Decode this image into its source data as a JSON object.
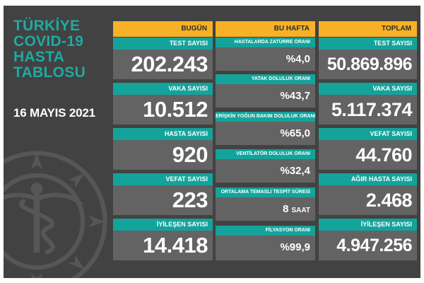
{
  "title_lines": [
    "TÜRKİYE",
    "COVID-19",
    "HASTA",
    "TABLOSU"
  ],
  "date": "16 MAYIS 2021",
  "emblem": "health-ministry-emblem",
  "colors": {
    "panel": "#424242",
    "header": "#f6b126",
    "label": "#14a39b",
    "value": "#636363",
    "title": "#1fa9a2"
  },
  "columns": {
    "today": {
      "header": "BUGÜN",
      "cards": [
        {
          "label": "TEST SAYISI",
          "value": "202.243"
        },
        {
          "label": "VAKA SAYISI",
          "value": "10.512"
        },
        {
          "label": "HASTA SAYISI",
          "value": "920"
        },
        {
          "label": "VEFAT SAYISI",
          "value": "223"
        },
        {
          "label": "İYİLEŞEN SAYISI",
          "value": "14.418"
        }
      ]
    },
    "week": {
      "header": "BU HAFTA",
      "cards": [
        {
          "label": "HASTALARDA ZATÜRRE ORANI",
          "value": "%4,0",
          "unit": ""
        },
        {
          "label": "YATAK DOLULUK ORANI",
          "value": "%43,7",
          "unit": ""
        },
        {
          "label": "ERİŞKİN YOĞUN BAKIM DOLULUK ORANI",
          "value": "%65,0",
          "unit": ""
        },
        {
          "label": "VENTİLATÖR DOLULUK ORANI",
          "value": "%32,4",
          "unit": ""
        },
        {
          "label": "ORTALAMA TEMASLI TESPİT SÜRESİ",
          "value": "8",
          "unit": "SAAT"
        },
        {
          "label": "FİLYASYON ORANI",
          "value": "%99,9",
          "unit": ""
        }
      ]
    },
    "total": {
      "header": "TOPLAM",
      "cards": [
        {
          "label": "TEST SAYISI",
          "value": "50.869.896"
        },
        {
          "label": "VAKA SAYISI",
          "value": "5.117.374"
        },
        {
          "label": "VEFAT SAYISI",
          "value": "44.760"
        },
        {
          "label": "AĞIR HASTA SAYISI",
          "value": "2.468"
        },
        {
          "label": "İYİLEŞEN SAYISI",
          "value": "4.947.256"
        }
      ]
    }
  }
}
